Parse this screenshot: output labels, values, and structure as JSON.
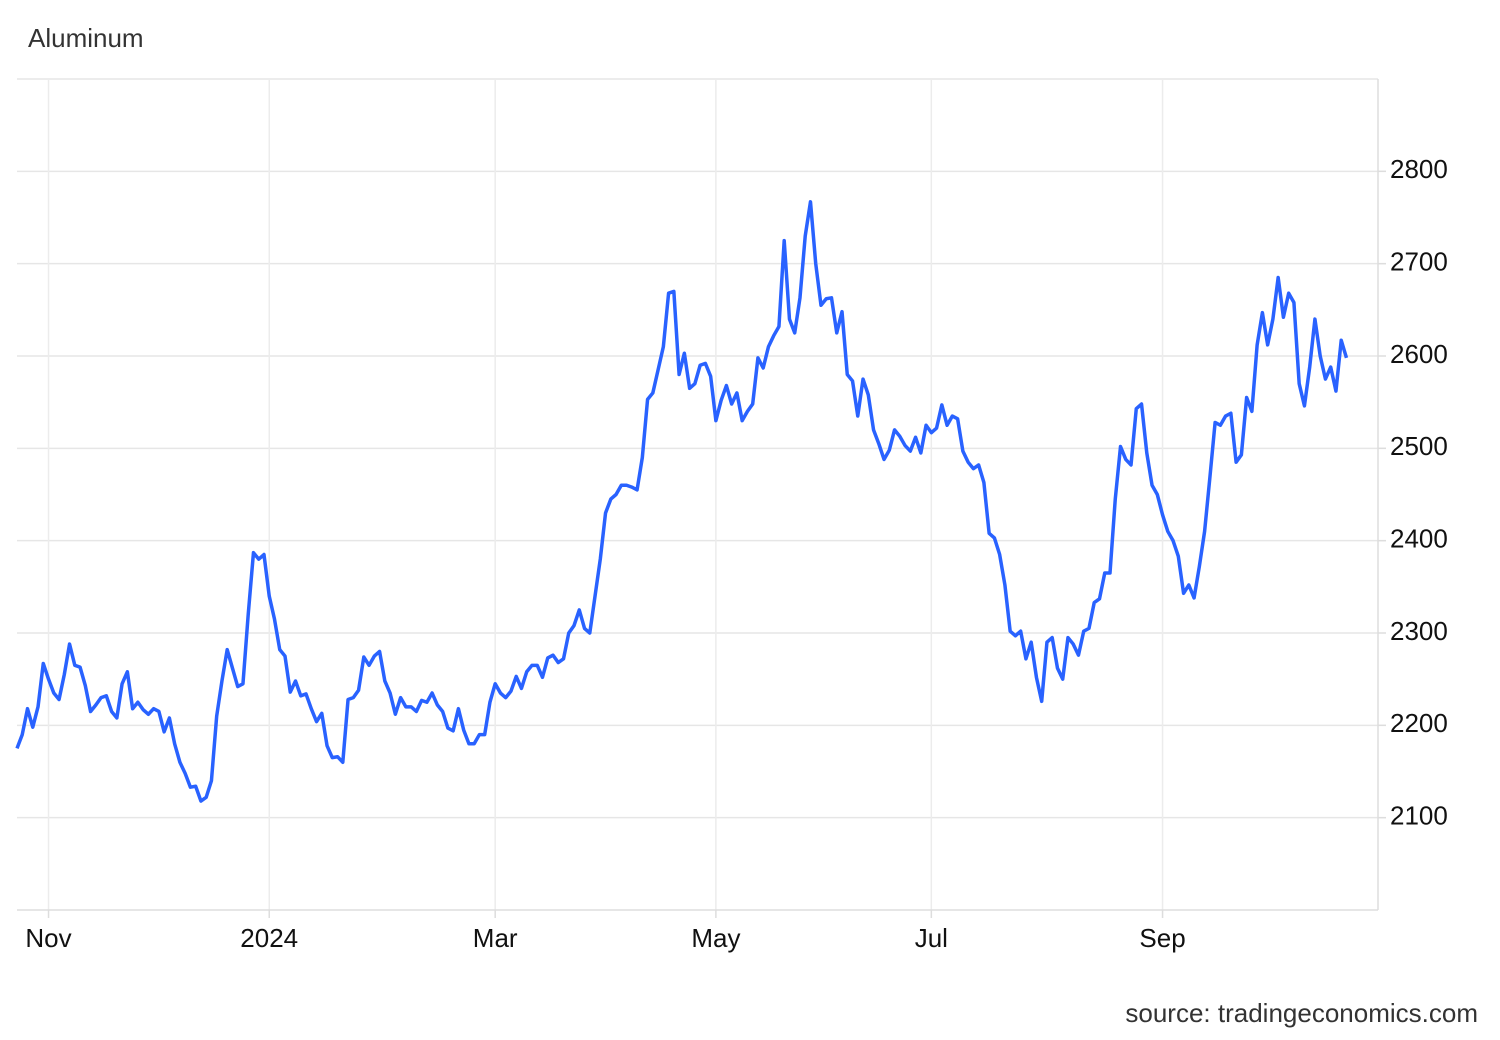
{
  "chart_data": {
    "type": "line",
    "title": "Aluminum",
    "source": "source: tradingeconomics.com",
    "color": "#2962ff",
    "grid": true,
    "ylim": [
      2000,
      2900
    ],
    "yticks": [
      2100,
      2200,
      2300,
      2400,
      2500,
      2600,
      2700,
      2800
    ],
    "xlim": [
      0,
      259
    ],
    "xticks": [
      {
        "value": 6,
        "label": "Nov"
      },
      {
        "value": 48,
        "label": "2024"
      },
      {
        "value": 91,
        "label": "Mar"
      },
      {
        "value": 133,
        "label": "May"
      },
      {
        "value": 174,
        "label": "Jul"
      },
      {
        "value": 218,
        "label": "Sep"
      }
    ],
    "values": [
      2175,
      2190,
      2218,
      2198,
      2220,
      2267,
      2250,
      2235,
      2228,
      2255,
      2288,
      2265,
      2263,
      2243,
      2215,
      2222,
      2230,
      2232,
      2215,
      2208,
      2245,
      2258,
      2218,
      2225,
      2217,
      2212,
      2218,
      2215,
      2193,
      2208,
      2180,
      2160,
      2148,
      2133,
      2134,
      2118,
      2122,
      2140,
      2210,
      2248,
      2282,
      2262,
      2242,
      2245,
      2320,
      2387,
      2380,
      2385,
      2340,
      2315,
      2282,
      2275,
      2236,
      2248,
      2232,
      2234,
      2218,
      2204,
      2213,
      2178,
      2165,
      2166,
      2160,
      2228,
      2230,
      2238,
      2274,
      2265,
      2275,
      2280,
      2248,
      2235,
      2212,
      2230,
      2220,
      2220,
      2215,
      2227,
      2225,
      2235,
      2222,
      2215,
      2197,
      2194,
      2218,
      2195,
      2180,
      2180,
      2190,
      2190,
      2225,
      2245,
      2235,
      2230,
      2237,
      2253,
      2240,
      2258,
      2265,
      2265,
      2252,
      2273,
      2276,
      2268,
      2272,
      2300,
      2308,
      2325,
      2305,
      2300,
      2340,
      2380,
      2430,
      2445,
      2450,
      2460,
      2460,
      2458,
      2455,
      2490,
      2553,
      2560,
      2585,
      2610,
      2668,
      2670,
      2580,
      2603,
      2565,
      2570,
      2590,
      2592,
      2578,
      2530,
      2552,
      2568,
      2548,
      2560,
      2530,
      2540,
      2548,
      2598,
      2587,
      2610,
      2622,
      2632,
      2725,
      2640,
      2625,
      2663,
      2730,
      2767,
      2700,
      2655,
      2662,
      2663,
      2625,
      2648,
      2580,
      2573,
      2535,
      2575,
      2558,
      2520,
      2505,
      2488,
      2498,
      2520,
      2513,
      2503,
      2497,
      2512,
      2495,
      2525,
      2517,
      2522,
      2547,
      2525,
      2535,
      2532,
      2497,
      2485,
      2478,
      2482,
      2463,
      2408,
      2403,
      2385,
      2352,
      2302,
      2297,
      2302,
      2272,
      2290,
      2252,
      2226,
      2290,
      2295,
      2262,
      2250,
      2295,
      2288,
      2276,
      2302,
      2305,
      2333,
      2337,
      2365,
      2365,
      2445,
      2502,
      2488,
      2482,
      2543,
      2548,
      2495,
      2460,
      2450,
      2428,
      2410,
      2400,
      2383,
      2343,
      2352,
      2338,
      2372,
      2410,
      2468,
      2528,
      2525,
      2535,
      2538,
      2485,
      2493,
      2555,
      2540,
      2612,
      2647,
      2612,
      2640,
      2685,
      2642,
      2668,
      2658,
      2570,
      2546,
      2588,
      2640,
      2600,
      2575,
      2588,
      2562,
      2617,
      2598
    ]
  }
}
